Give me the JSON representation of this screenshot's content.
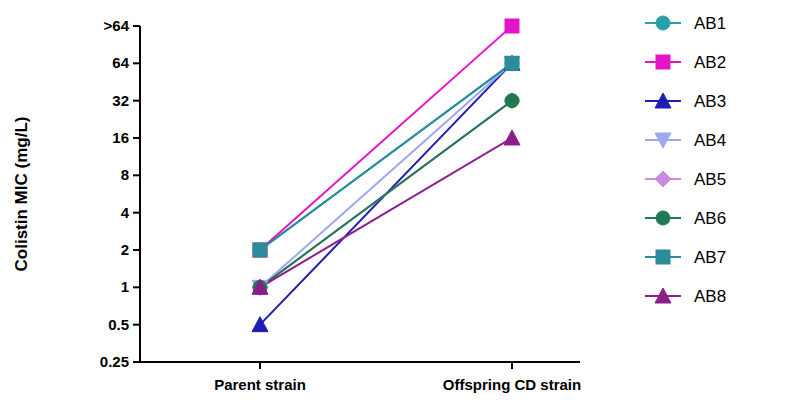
{
  "chart_data": {
    "type": "line",
    "log": "y",
    "y_label": "Colistin MIC (mg/L)",
    "categories": [
      "Parent strain",
      "Offspring CD strain"
    ],
    "ylim": [
      0.25,
      128
    ],
    "yticks": [
      0.25,
      0.5,
      1,
      2,
      4,
      8,
      16,
      32,
      64,
      {
        "value": 128,
        "label": ">64"
      }
    ],
    "legend": "right",
    "series": [
      {
        "name": "AB1",
        "color": "#2a9fa8",
        "marker": "circle",
        "values": [
          2,
          64
        ]
      },
      {
        "name": "AB2",
        "color": "#e614c8",
        "marker": "square",
        "values": [
          2,
          128
        ]
      },
      {
        "name": "AB3",
        "color": "#1e1eb4",
        "marker": "triangle",
        "values": [
          0.5,
          64
        ]
      },
      {
        "name": "AB4",
        "color": "#9ea8f0",
        "marker": "triangle-down",
        "values": [
          1,
          64
        ]
      },
      {
        "name": "AB5",
        "color": "#c98ce0",
        "marker": "diamond",
        "values": [
          1,
          32
        ]
      },
      {
        "name": "AB6",
        "color": "#1e7a50",
        "marker": "circle",
        "values": [
          1,
          32
        ]
      },
      {
        "name": "AB7",
        "color": "#2a8c9c",
        "marker": "square",
        "values": [
          2,
          64
        ]
      },
      {
        "name": "AB8",
        "color": "#8c1e8c",
        "marker": "triangle",
        "values": [
          1,
          16
        ]
      }
    ]
  }
}
